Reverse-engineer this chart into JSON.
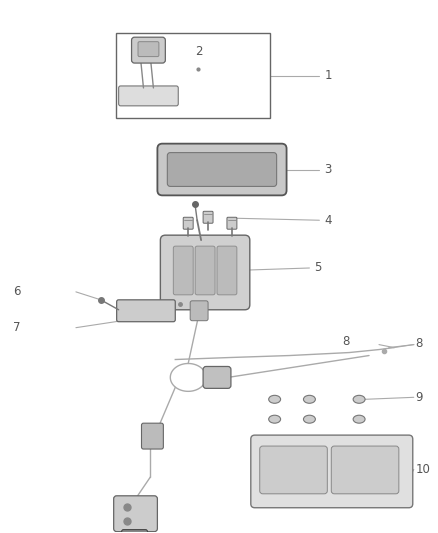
{
  "bg_color": "#ffffff",
  "line_color": "#aaaaaa",
  "dark_color": "#555555",
  "text_color": "#555555",
  "fig_width": 4.38,
  "fig_height": 5.33,
  "dpi": 100,
  "label_fontsize": 8.5
}
